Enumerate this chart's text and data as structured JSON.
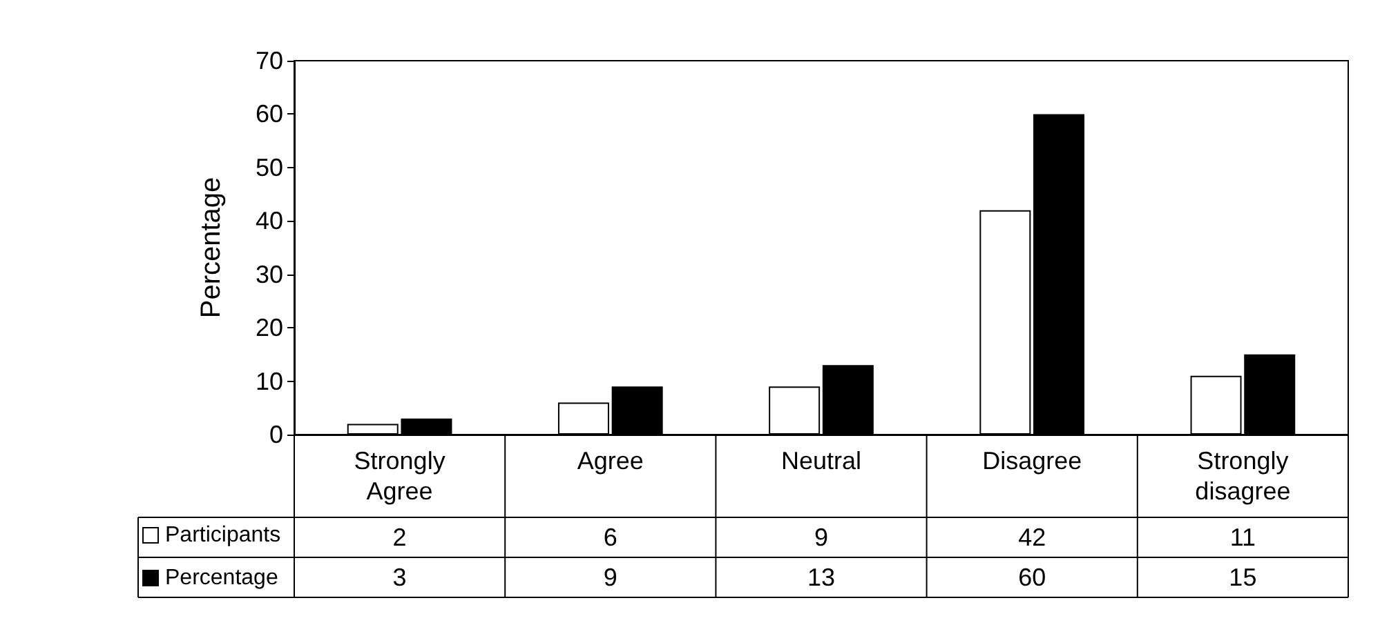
{
  "chart_data": {
    "type": "bar",
    "ylabel": "Percentage",
    "categories": [
      "Strongly\nAgree",
      "Agree",
      "Neutral",
      "Disagree",
      "Strongly\ndisagree"
    ],
    "series": [
      {
        "name": "Participants",
        "color": "#ffffff",
        "values": [
          2,
          6,
          9,
          42,
          11
        ]
      },
      {
        "name": "Percentage",
        "color": "#000000",
        "values": [
          3,
          9,
          13,
          60,
          15
        ]
      }
    ],
    "ylim": [
      0,
      70
    ],
    "yticks": [
      0,
      10,
      20,
      30,
      40,
      50,
      60,
      70
    ],
    "grid": false,
    "legend": "bottom left",
    "data_labels": true
  }
}
